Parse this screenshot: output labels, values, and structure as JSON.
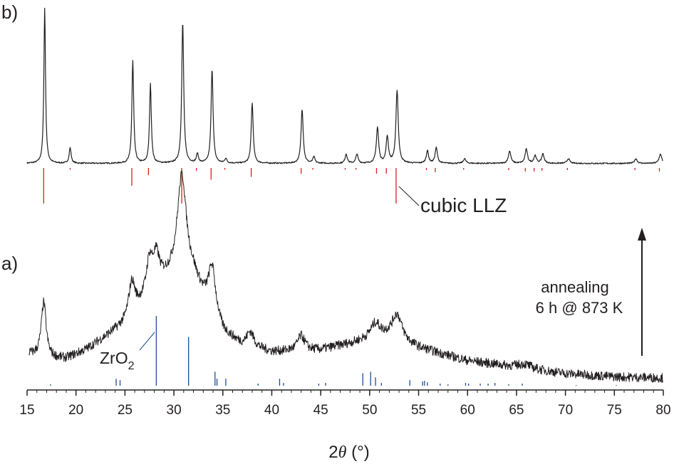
{
  "chart_data": {
    "type": "line",
    "xlabel_prefix": "2",
    "xlabel_theta": "θ",
    "xlabel_unit": " (°)",
    "x_range": [
      15,
      80
    ],
    "x_ticks": [
      15,
      20,
      25,
      30,
      35,
      40,
      45,
      50,
      55,
      60,
      65,
      70,
      75,
      80
    ],
    "grid": false,
    "panels": [
      {
        "label": "b)",
        "trace": {
          "baseline": 0.02,
          "noise": 0.004,
          "peaks": [
            [
              16.8,
              1.0,
              0.1
            ],
            [
              19.4,
              0.1,
              0.12
            ],
            [
              25.8,
              0.66,
              0.11
            ],
            [
              27.6,
              0.51,
              0.11
            ],
            [
              30.9,
              0.91,
              0.12
            ],
            [
              32.4,
              0.06,
              0.12
            ],
            [
              33.9,
              0.61,
              0.12
            ],
            [
              35.3,
              0.03,
              0.12
            ],
            [
              38.0,
              0.39,
              0.12
            ],
            [
              43.1,
              0.35,
              0.13
            ],
            [
              44.3,
              0.04,
              0.13
            ],
            [
              47.6,
              0.06,
              0.13
            ],
            [
              48.7,
              0.06,
              0.13
            ],
            [
              50.8,
              0.23,
              0.14
            ],
            [
              51.8,
              0.17,
              0.14
            ],
            [
              52.8,
              0.47,
              0.14
            ],
            [
              55.9,
              0.08,
              0.14
            ],
            [
              56.8,
              0.1,
              0.14
            ],
            [
              59.7,
              0.03,
              0.15
            ],
            [
              64.3,
              0.08,
              0.15
            ],
            [
              66.0,
              0.09,
              0.15
            ],
            [
              66.9,
              0.05,
              0.15
            ],
            [
              67.7,
              0.06,
              0.15
            ],
            [
              70.3,
              0.03,
              0.16
            ],
            [
              77.2,
              0.03,
              0.16
            ],
            [
              79.7,
              0.06,
              0.16
            ]
          ]
        },
        "reference": {
          "name": "cubic LLZ",
          "color": "#e31b23",
          "sticks": [
            [
              16.7,
              1.0
            ],
            [
              19.4,
              0.05
            ],
            [
              25.7,
              0.5
            ],
            [
              27.4,
              0.2
            ],
            [
              30.8,
              1.0
            ],
            [
              32.3,
              0.08
            ],
            [
              33.8,
              0.33
            ],
            [
              35.2,
              0.05
            ],
            [
              37.9,
              0.25
            ],
            [
              43.0,
              0.16
            ],
            [
              44.2,
              0.05
            ],
            [
              47.5,
              0.05
            ],
            [
              48.6,
              0.05
            ],
            [
              50.7,
              0.16
            ],
            [
              51.7,
              0.16
            ],
            [
              52.7,
              1.0
            ],
            [
              55.8,
              0.06
            ],
            [
              56.7,
              0.12
            ],
            [
              59.6,
              0.05
            ],
            [
              64.2,
              0.06
            ],
            [
              65.9,
              0.1
            ],
            [
              66.8,
              0.1
            ],
            [
              67.6,
              0.08
            ],
            [
              70.2,
              0.06
            ],
            [
              77.1,
              0.06
            ],
            [
              79.6,
              0.1
            ]
          ]
        }
      },
      {
        "label": "a)",
        "trace": {
          "background": [
            [
              15.2,
              0.12
            ],
            [
              17,
              0.1
            ],
            [
              19,
              0.1
            ],
            [
              21,
              0.14
            ],
            [
              23,
              0.2
            ],
            [
              25,
              0.26
            ],
            [
              27,
              0.36
            ],
            [
              29,
              0.46
            ],
            [
              31,
              0.52
            ],
            [
              32,
              0.48
            ],
            [
              33,
              0.38
            ],
            [
              35,
              0.22
            ],
            [
              37,
              0.16
            ],
            [
              40,
              0.13
            ],
            [
              45,
              0.14
            ],
            [
              48,
              0.17
            ],
            [
              50,
              0.19
            ],
            [
              52,
              0.2
            ],
            [
              55,
              0.15
            ],
            [
              60,
              0.09
            ],
            [
              65,
              0.06
            ],
            [
              70,
              0.03
            ],
            [
              75,
              0.015
            ],
            [
              80,
              0.01
            ]
          ],
          "noise": 0.022,
          "peaks": [
            [
              16.7,
              0.26,
              0.3
            ],
            [
              25.7,
              0.16,
              0.4
            ],
            [
              27.5,
              0.16,
              0.4
            ],
            [
              28.2,
              0.14,
              0.4
            ],
            [
              30.8,
              0.44,
              0.55
            ],
            [
              33.9,
              0.22,
              0.45
            ],
            [
              37.8,
              0.07,
              0.45
            ],
            [
              43.0,
              0.07,
              0.45
            ],
            [
              50.6,
              0.07,
              0.6
            ],
            [
              52.8,
              0.12,
              0.6
            ],
            [
              65.8,
              0.02,
              0.8
            ]
          ]
        },
        "reference": {
          "name": "ZrO",
          "name_sub": "2",
          "color": "#1f4e96",
          "sticks": [
            [
              17.4,
              0.02
            ],
            [
              24.1,
              0.1
            ],
            [
              24.5,
              0.08
            ],
            [
              28.2,
              1.0
            ],
            [
              31.5,
              0.7
            ],
            [
              34.2,
              0.2
            ],
            [
              34.4,
              0.1
            ],
            [
              35.3,
              0.1
            ],
            [
              38.6,
              0.03
            ],
            [
              40.8,
              0.1
            ],
            [
              41.2,
              0.04
            ],
            [
              44.8,
              0.03
            ],
            [
              45.5,
              0.04
            ],
            [
              49.3,
              0.18
            ],
            [
              50.1,
              0.2
            ],
            [
              50.6,
              0.12
            ],
            [
              51.2,
              0.04
            ],
            [
              54.1,
              0.08
            ],
            [
              55.4,
              0.06
            ],
            [
              55.6,
              0.07
            ],
            [
              55.9,
              0.05
            ],
            [
              57.2,
              0.03
            ],
            [
              58.0,
              0.02
            ],
            [
              59.8,
              0.04
            ],
            [
              60.1,
              0.03
            ],
            [
              61.3,
              0.03
            ],
            [
              62.1,
              0.03
            ],
            [
              62.8,
              0.04
            ],
            [
              64.2,
              0.02
            ],
            [
              65.6,
              0.03
            ],
            [
              71.1,
              0.01
            ],
            [
              75.2,
              0.01
            ]
          ]
        }
      }
    ],
    "annotation": {
      "lines": [
        "annealing",
        "6 h @ 873 K"
      ],
      "arrow": "up"
    }
  }
}
